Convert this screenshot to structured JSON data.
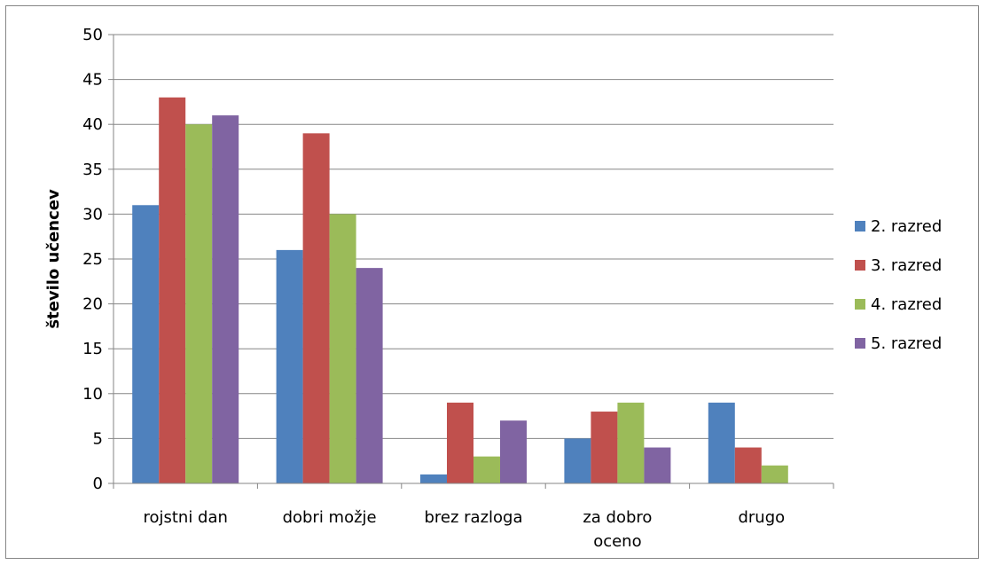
{
  "chart_data": {
    "type": "bar",
    "title": "",
    "xlabel": "",
    "ylabel": "število učencev",
    "categories": [
      [
        "rojstni dan"
      ],
      [
        "dobri možje"
      ],
      [
        "brez razloga"
      ],
      [
        "za dobro",
        "oceno"
      ],
      [
        "drugo"
      ]
    ],
    "series": [
      {
        "name": "2. razred",
        "color": "#4F81BD",
        "values": [
          31,
          26,
          1,
          5,
          9
        ]
      },
      {
        "name": "3. razred",
        "color": "#C0504D",
        "values": [
          43,
          39,
          9,
          8,
          4
        ]
      },
      {
        "name": "4. razred",
        "color": "#9BBB59",
        "values": [
          40,
          30,
          3,
          9,
          2
        ]
      },
      {
        "name": "5. razred",
        "color": "#8064A2",
        "values": [
          41,
          24,
          7,
          4,
          0
        ]
      }
    ],
    "ylim": [
      0,
      50
    ],
    "yticks": [
      0,
      5,
      10,
      15,
      20,
      25,
      30,
      35,
      40,
      45,
      50
    ],
    "grid": true,
    "legend_position": "right"
  }
}
